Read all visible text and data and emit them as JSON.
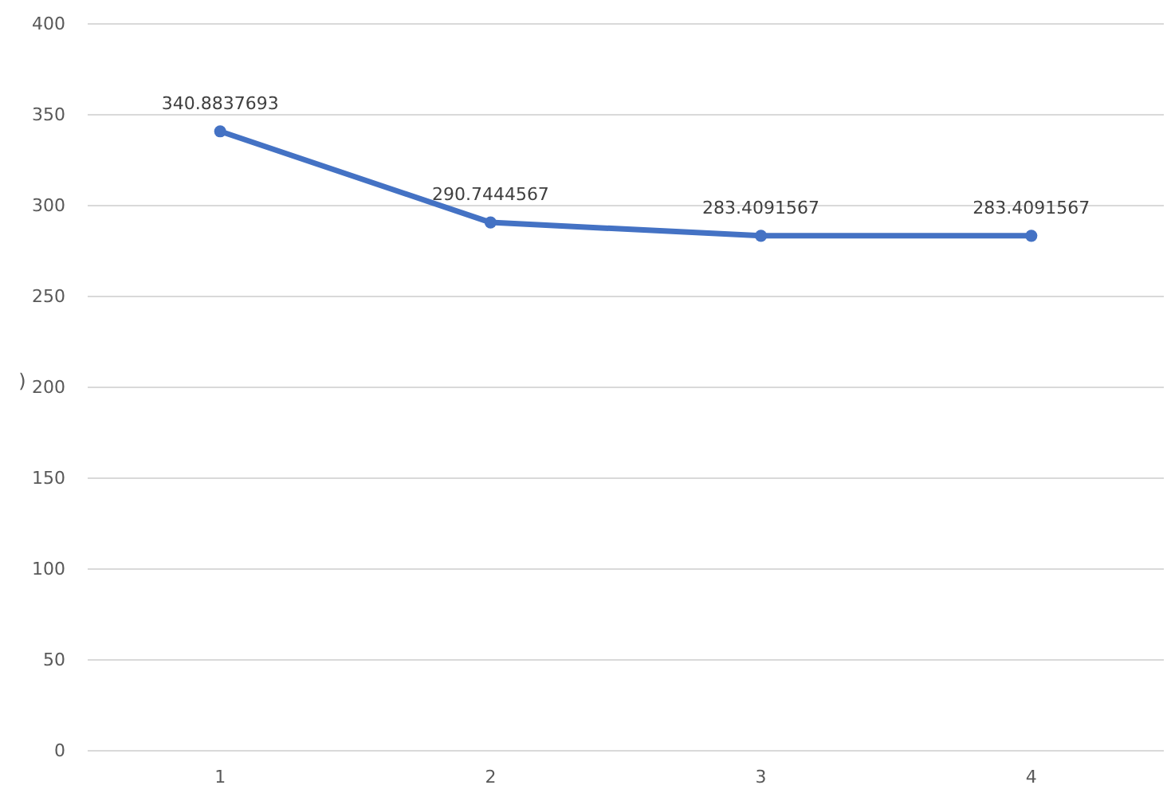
{
  "chart_data": {
    "type": "line",
    "ylabel": ")",
    "categories": [
      "1",
      "2",
      "3",
      "4"
    ],
    "series": [
      {
        "color": "#4472c4",
        "values": [
          340.8837693,
          290.7444567,
          283.4091567,
          283.4091567
        ]
      }
    ],
    "ylim": [
      0,
      400
    ],
    "yticks": [
      0,
      50,
      100,
      150,
      200,
      250,
      300,
      350,
      400
    ],
    "grid": "y",
    "marker": "circle",
    "line_style": "solid",
    "data_labels": true
  }
}
